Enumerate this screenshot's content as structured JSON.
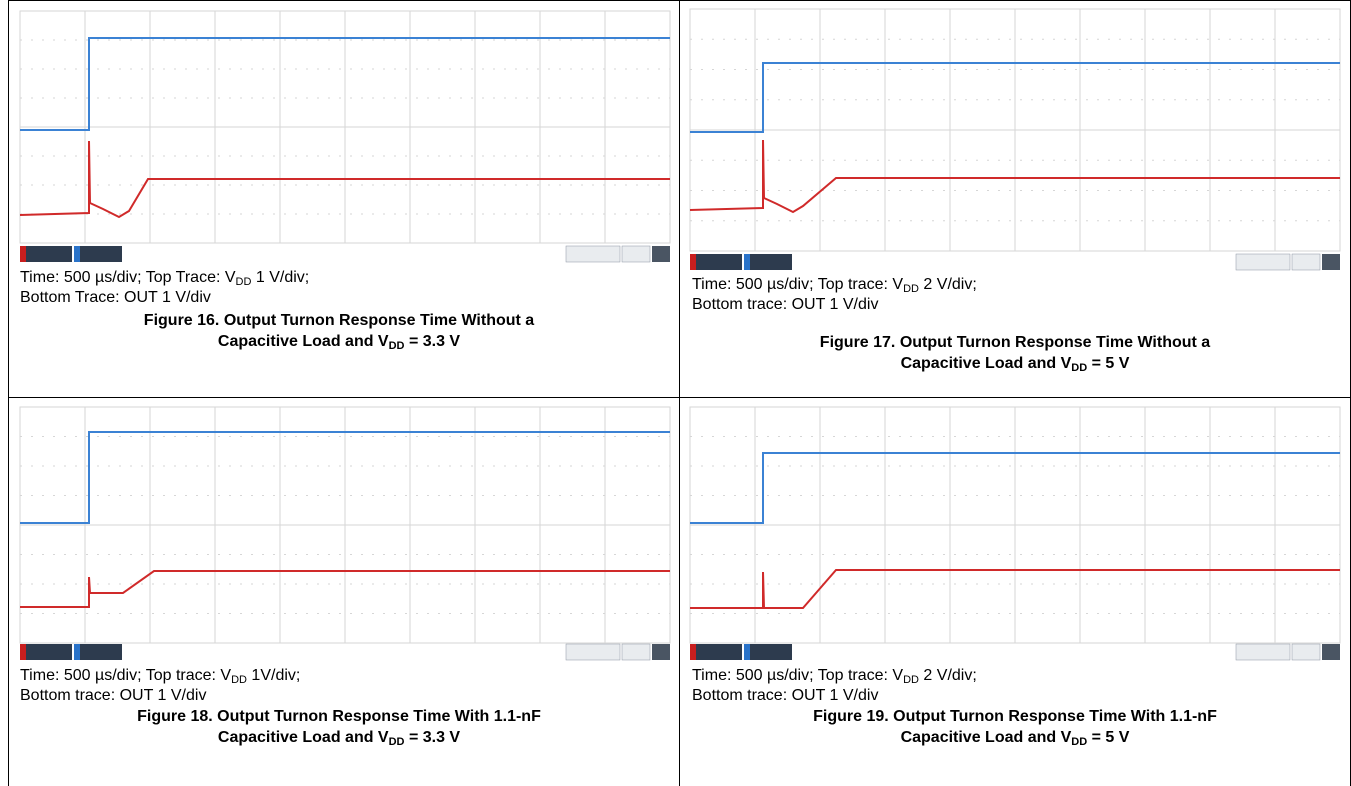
{
  "colors": {
    "top_trace": "#3b82d4",
    "bottom_trace": "#d02a2a",
    "grid_line": "#d6d6d6",
    "grid_dot": "#b8b8b8",
    "status_dark": "#2d3b4e",
    "status_blue": "#2a73c9",
    "status_red": "#c81e1e"
  },
  "panels": [
    {
      "id": "fig16",
      "caption_line1_pre": "Time: 500 µs/div; Top Trace: V",
      "caption_line1_sub": "DD",
      "caption_line1_post": " 1 V/div;",
      "caption_line2": "Bottom Trace: OUT 1 V/div",
      "figure_line1": "Figure 16. Output Turnon Response Time Without a",
      "figure_line2_pre": "Capacitive Load and V",
      "figure_line2_sub": "DD",
      "figure_line2_post": " = 3.3 V"
    },
    {
      "id": "fig17",
      "caption_line1_pre": "Time: 500 µs/div; Top trace: V",
      "caption_line1_sub": "DD",
      "caption_line1_post": " 2 V/div;",
      "caption_line2": "Bottom trace: OUT 1 V/div",
      "figure_line1": "Figure 17. Output Turnon Response Time Without a",
      "figure_line2_pre": "Capacitive Load and V",
      "figure_line2_sub": "DD",
      "figure_line2_post": " = 5 V"
    },
    {
      "id": "fig18",
      "caption_line1_pre": "Time: 500 µs/div; Top trace: V",
      "caption_line1_sub": "DD",
      "caption_line1_post": " 1V/div;",
      "caption_line2": "Bottom trace: OUT 1 V/div",
      "figure_line1": "Figure 18. Output Turnon Response Time With 1.1-nF",
      "figure_line2_pre": "Capacitive Load and V",
      "figure_line2_sub": "DD",
      "figure_line2_post": " = 3.3 V"
    },
    {
      "id": "fig19",
      "caption_line1_pre": "Time: 500 µs/div; Top trace: V",
      "caption_line1_sub": "DD",
      "caption_line1_post": " 2 V/div;",
      "caption_line2": "Bottom trace: OUT 1 V/div",
      "figure_line1": "Figure 19. Output Turnon Response Time With 1.1-nF",
      "figure_line2_pre": "Capacitive Load and V",
      "figure_line2_sub": "DD",
      "figure_line2_post": " = 5 V"
    }
  ]
}
